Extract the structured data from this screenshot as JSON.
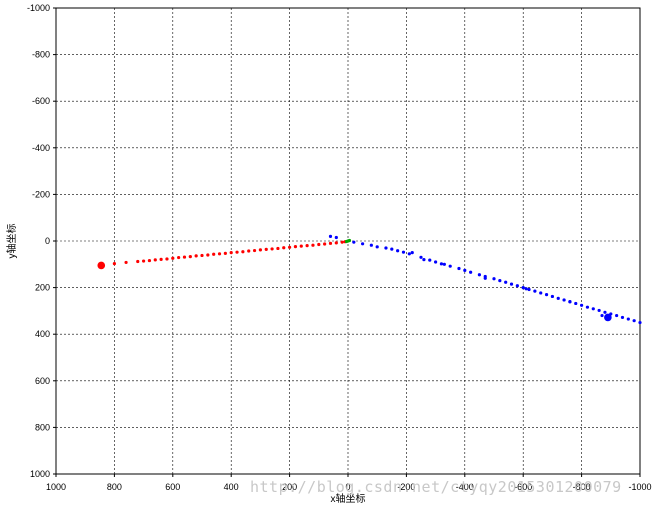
{
  "chart_data": {
    "type": "scatter",
    "title": "",
    "xlabel": "x轴坐标",
    "ylabel": "y轴坐标",
    "xlim": [
      1000,
      -1000
    ],
    "ylim": [
      1000,
      -1000
    ],
    "x_ticks": [
      1000,
      800,
      600,
      400,
      200,
      0,
      -200,
      -400,
      -600,
      -800,
      -1000
    ],
    "y_ticks": [
      -1000,
      -800,
      -600,
      -400,
      -200,
      0,
      200,
      400,
      600,
      800,
      1000
    ],
    "x_tick_labels": [
      "1000",
      "800",
      "600",
      "400",
      "200",
      "0",
      "-200",
      "-400",
      "-600",
      "-800",
      "-1000"
    ],
    "y_tick_labels": [
      "-1000",
      "-800",
      "-600",
      "-400",
      "-200",
      "0",
      "200",
      "400",
      "600",
      "800",
      "1000"
    ],
    "grid": true,
    "series": [
      {
        "color": "#ff0000",
        "marker": "dot",
        "x": [
          845,
          800,
          760,
          720,
          700,
          680,
          660,
          640,
          620,
          600,
          580,
          560,
          540,
          520,
          500,
          480,
          460,
          440,
          420,
          400,
          380,
          360,
          340,
          320,
          300,
          280,
          260,
          240,
          220,
          200,
          180,
          160,
          140,
          120,
          100,
          80,
          60,
          40,
          20,
          10
        ],
        "y": [
          105,
          97,
          92,
          88,
          86,
          84,
          81,
          79,
          77,
          74,
          71,
          69,
          67,
          64,
          62,
          60,
          57,
          55,
          53,
          50,
          48,
          46,
          43,
          41,
          38,
          36,
          34,
          32,
          29,
          27,
          24,
          22,
          20,
          18,
          15,
          13,
          10,
          8,
          5,
          3
        ]
      },
      {
        "color": "#0000ff",
        "marker": "dot",
        "x": [
          -20,
          -50,
          -80,
          -100,
          -130,
          -150,
          -170,
          -190,
          -210,
          -250,
          -280,
          -300,
          -320,
          -350,
          -380,
          -400,
          -420,
          -450,
          -470,
          -500,
          -520,
          -540,
          -560,
          -580,
          -600,
          -620,
          -640,
          -660,
          -680,
          -700,
          -720,
          -740,
          -760,
          -780,
          -800,
          -820,
          -840,
          -860,
          -880,
          -900,
          -920,
          -940,
          -960,
          -980,
          -1000,
          60,
          40,
          -220,
          -260,
          -330,
          -470,
          -610,
          -760,
          -870
        ],
        "y": [
          5,
          12,
          18,
          25,
          30,
          35,
          42,
          48,
          55,
          70,
          82,
          90,
          98,
          108,
          118,
          126,
          134,
          145,
          152,
          162,
          170,
          177,
          185,
          192,
          200,
          208,
          215,
          223,
          230,
          238,
          246,
          253,
          261,
          268,
          276,
          284,
          291,
          298,
          306,
          313,
          320,
          328,
          335,
          342,
          350,
          -20,
          -15,
          50,
          80,
          100,
          160,
          205,
          260,
          320
        ]
      },
      {
        "color": "#00aa00",
        "marker": "dot",
        "x": [
          0,
          5,
          -5
        ],
        "y": [
          0,
          2,
          -2
        ]
      }
    ],
    "highlight_points": [
      {
        "x": 845,
        "y": 105,
        "color": "#ff0000"
      },
      {
        "x": -890,
        "y": 328,
        "color": "#0000ff"
      }
    ]
  },
  "watermark_text": "http://blog.csdn.net/ctyqy2015301200079"
}
